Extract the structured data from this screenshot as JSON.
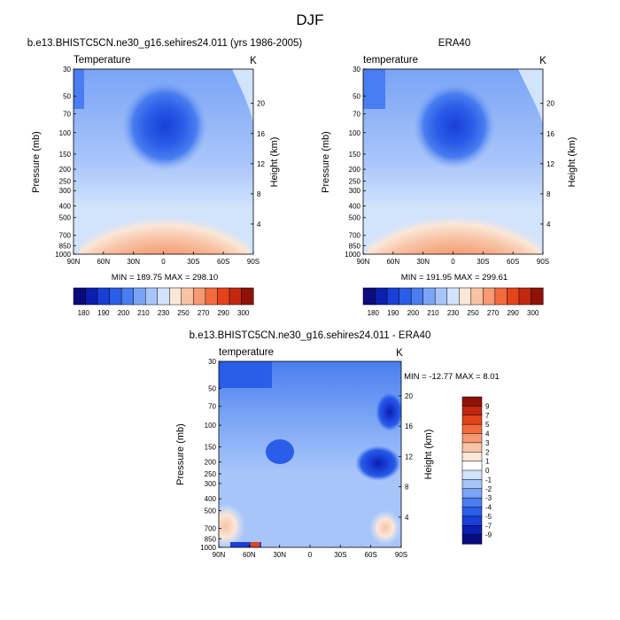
{
  "figure": {
    "main_title": "DJF"
  },
  "chart_data": [
    {
      "type": "heatmap",
      "title": "b.e13.BHISTC5CN.ne30_g16.sehires24.011 (yrs 1986-2005)",
      "left_label": "Temperature",
      "right_label": "K",
      "xlabel": "",
      "ylabel": "Pressure (mb)",
      "y2label": "Height (km)",
      "x_ticks": [
        "90N",
        "60N",
        "30N",
        "0",
        "30S",
        "60S",
        "90S"
      ],
      "y_ticks": [
        "30",
        "50",
        "70",
        "100",
        "150",
        "200",
        "250",
        "300",
        "400",
        "500",
        "700",
        "850",
        "1000"
      ],
      "y2_ticks": [
        "4",
        "8",
        "12",
        "16",
        "20"
      ],
      "stats": "MIN = 189.75   MAX = 298.10",
      "colorbar": {
        "labels": [
          "180",
          "190",
          "200",
          "210",
          "230",
          "250",
          "270",
          "290",
          "300"
        ],
        "colors": [
          "#0b0b7e",
          "#0b1fae",
          "#1a3fd8",
          "#2a5de8",
          "#4a7df0",
          "#7aa4f5",
          "#a8c5fa",
          "#d2e3fc",
          "#fbe7d8",
          "#f8c3a5",
          "#f59a72",
          "#f26a3e",
          "#e4431c",
          "#c22810",
          "#8e1207"
        ]
      },
      "grid": false
    },
    {
      "type": "heatmap",
      "title": "ERA40",
      "left_label": "temperature",
      "right_label": "K",
      "xlabel": "",
      "ylabel": "Pressure (mb)",
      "y2label": "Height (km)",
      "x_ticks": [
        "90N",
        "60N",
        "30N",
        "0",
        "30S",
        "60S",
        "90S"
      ],
      "y_ticks": [
        "30",
        "50",
        "70",
        "100",
        "150",
        "200",
        "250",
        "300",
        "400",
        "500",
        "700",
        "850",
        "1000"
      ],
      "y2_ticks": [
        "4",
        "8",
        "12",
        "16",
        "20"
      ],
      "stats": "MIN = 191.95   MAX = 299.61",
      "colorbar": {
        "labels": [
          "180",
          "190",
          "200",
          "210",
          "230",
          "250",
          "270",
          "290",
          "300"
        ],
        "colors": [
          "#0b0b7e",
          "#0b1fae",
          "#1a3fd8",
          "#2a5de8",
          "#4a7df0",
          "#7aa4f5",
          "#a8c5fa",
          "#d2e3fc",
          "#fbe7d8",
          "#f8c3a5",
          "#f59a72",
          "#f26a3e",
          "#e4431c",
          "#c22810",
          "#8e1207"
        ]
      },
      "grid": false
    },
    {
      "type": "heatmap",
      "title": "b.e13.BHISTC5CN.ne30_g16.sehires24.011 - ERA40",
      "left_label": "temperature",
      "right_label": "K",
      "xlabel": "",
      "ylabel": "Pressure (mb)",
      "y2label": "Height (km)",
      "x_ticks": [
        "90N",
        "60N",
        "30N",
        "0",
        "30S",
        "60S",
        "90S"
      ],
      "y_ticks": [
        "30",
        "50",
        "70",
        "100",
        "150",
        "200",
        "250",
        "300",
        "400",
        "500",
        "700",
        "850",
        "1000"
      ],
      "y2_ticks": [
        "4",
        "8",
        "12",
        "16",
        "20"
      ],
      "stats": "MIN = -12.77  MAX =   8.01",
      "colorbar": {
        "labels": [
          "9",
          "7",
          "5",
          "4",
          "3",
          "2",
          "1",
          "0",
          "-1",
          "-2",
          "-3",
          "-4",
          "-5",
          "-7",
          "-9"
        ],
        "colors": [
          "#8e1207",
          "#c22810",
          "#e4431c",
          "#f26a3e",
          "#f59a72",
          "#f8c3a5",
          "#fbe7d8",
          "#ffffff",
          "#d2e3fc",
          "#a8c5fa",
          "#7aa4f5",
          "#4a7df0",
          "#2a5de8",
          "#1a3fd8",
          "#0b1fae",
          "#0b0b7e"
        ]
      },
      "grid": false
    }
  ]
}
